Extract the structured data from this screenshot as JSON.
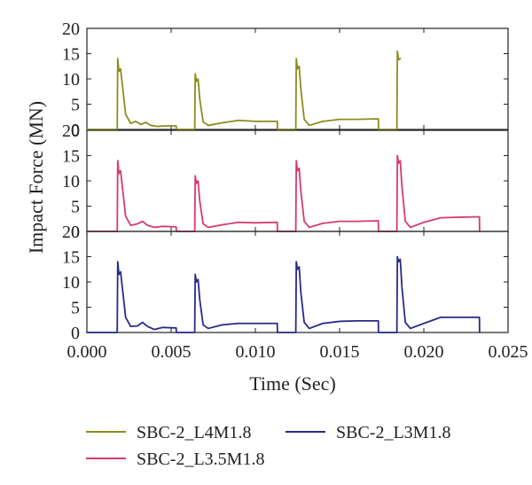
{
  "chart_data": {
    "type": "line",
    "xlabel": "Time (Sec)",
    "ylabel": "Impact Force (MN)",
    "xlim": [
      0.0,
      0.025
    ],
    "ylim": [
      0,
      20
    ],
    "x_ticks": [
      "0.000",
      "0.005",
      "0.010",
      "0.015",
      "0.020",
      "0.025"
    ],
    "y_ticks": [
      "0",
      "5",
      "10",
      "15",
      "20"
    ],
    "x_tick_values": [
      0.0,
      0.005,
      0.01,
      0.015,
      0.02,
      0.025
    ],
    "y_tick_values": [
      0,
      5,
      10,
      15,
      20
    ],
    "legend_position": "bottom",
    "panels": [
      {
        "series": {
          "name": "SBC-2_L4M1.8",
          "color": "#8c8c1e",
          "points": [
            [
              0.0,
              0.0
            ],
            [
              0.0018,
              0.0
            ],
            [
              0.00183,
              14.0
            ],
            [
              0.0019,
              11.5
            ],
            [
              0.002,
              12.0
            ],
            [
              0.0021,
              9.0
            ],
            [
              0.0023,
              3.0
            ],
            [
              0.0026,
              1.2
            ],
            [
              0.0029,
              1.6
            ],
            [
              0.0032,
              1.0
            ],
            [
              0.0035,
              1.4
            ],
            [
              0.0038,
              0.8
            ],
            [
              0.0042,
              0.6
            ],
            [
              0.0047,
              0.7
            ],
            [
              0.0053,
              0.7
            ],
            [
              0.00531,
              0.0
            ],
            [
              0.0064,
              0.0
            ],
            [
              0.00643,
              11.0
            ],
            [
              0.0065,
              9.5
            ],
            [
              0.0066,
              10.0
            ],
            [
              0.0067,
              6.0
            ],
            [
              0.0069,
              1.5
            ],
            [
              0.0072,
              0.8
            ],
            [
              0.008,
              1.3
            ],
            [
              0.009,
              1.8
            ],
            [
              0.01,
              1.6
            ],
            [
              0.0113,
              1.6
            ],
            [
              0.01131,
              0.0
            ],
            [
              0.0124,
              0.0
            ],
            [
              0.01243,
              14.0
            ],
            [
              0.0125,
              12.0
            ],
            [
              0.0126,
              12.5
            ],
            [
              0.0127,
              8.0
            ],
            [
              0.0129,
              2.0
            ],
            [
              0.0132,
              0.8
            ],
            [
              0.014,
              1.6
            ],
            [
              0.015,
              2.0
            ],
            [
              0.016,
              2.0
            ],
            [
              0.0173,
              2.1
            ],
            [
              0.01731,
              0.0
            ],
            [
              0.0184,
              0.0
            ],
            [
              0.01843,
              15.5
            ],
            [
              0.0185,
              13.8
            ],
            [
              0.0186,
              14.0
            ]
          ]
        }
      },
      {
        "series": {
          "name": "SBC-2_L3.5M1.8",
          "color": "#d63a6e",
          "points": [
            [
              0.0,
              0.0
            ],
            [
              0.0018,
              0.0
            ],
            [
              0.00183,
              14.0
            ],
            [
              0.0019,
              11.5
            ],
            [
              0.002,
              12.0
            ],
            [
              0.0021,
              9.0
            ],
            [
              0.0023,
              3.0
            ],
            [
              0.0026,
              1.2
            ],
            [
              0.003,
              1.5
            ],
            [
              0.0033,
              2.0
            ],
            [
              0.0036,
              1.2
            ],
            [
              0.004,
              0.8
            ],
            [
              0.0045,
              1.0
            ],
            [
              0.0053,
              0.9
            ],
            [
              0.00531,
              0.0
            ],
            [
              0.0064,
              0.0
            ],
            [
              0.00643,
              11.0
            ],
            [
              0.0065,
              9.5
            ],
            [
              0.0066,
              10.0
            ],
            [
              0.0067,
              6.0
            ],
            [
              0.0069,
              1.5
            ],
            [
              0.0072,
              0.8
            ],
            [
              0.008,
              1.3
            ],
            [
              0.009,
              1.8
            ],
            [
              0.01,
              1.7
            ],
            [
              0.0113,
              1.8
            ],
            [
              0.01131,
              0.0
            ],
            [
              0.0124,
              0.0
            ],
            [
              0.01243,
              14.0
            ],
            [
              0.0125,
              12.0
            ],
            [
              0.0126,
              12.5
            ],
            [
              0.0127,
              8.0
            ],
            [
              0.0129,
              2.0
            ],
            [
              0.0132,
              0.8
            ],
            [
              0.014,
              1.6
            ],
            [
              0.015,
              2.0
            ],
            [
              0.016,
              2.0
            ],
            [
              0.0173,
              2.1
            ],
            [
              0.01731,
              0.0
            ],
            [
              0.0184,
              0.0
            ],
            [
              0.01843,
              15.0
            ],
            [
              0.0185,
              13.5
            ],
            [
              0.0186,
              14.0
            ],
            [
              0.0187,
              9.0
            ],
            [
              0.0189,
              2.0
            ],
            [
              0.0192,
              0.8
            ],
            [
              0.02,
              1.8
            ],
            [
              0.021,
              2.7
            ],
            [
              0.022,
              2.8
            ],
            [
              0.0233,
              2.9
            ],
            [
              0.02331,
              0.0
            ]
          ]
        }
      },
      {
        "series": {
          "name": "SBC-2_L3M1.8",
          "color": "#2a2a8a",
          "points": [
            [
              0.0,
              0.0
            ],
            [
              0.0018,
              0.0
            ],
            [
              0.00183,
              14.0
            ],
            [
              0.0019,
              11.5
            ],
            [
              0.002,
              12.0
            ],
            [
              0.0021,
              9.0
            ],
            [
              0.0023,
              3.0
            ],
            [
              0.0026,
              1.2
            ],
            [
              0.003,
              1.3
            ],
            [
              0.0033,
              2.0
            ],
            [
              0.0036,
              1.2
            ],
            [
              0.004,
              0.6
            ],
            [
              0.0045,
              1.0
            ],
            [
              0.0053,
              0.9
            ],
            [
              0.00531,
              0.0
            ],
            [
              0.0064,
              0.0
            ],
            [
              0.00643,
              11.5
            ],
            [
              0.0065,
              10.0
            ],
            [
              0.0066,
              10.5
            ],
            [
              0.0067,
              6.5
            ],
            [
              0.0069,
              1.5
            ],
            [
              0.0072,
              0.8
            ],
            [
              0.008,
              1.5
            ],
            [
              0.009,
              1.8
            ],
            [
              0.01,
              1.8
            ],
            [
              0.0113,
              1.8
            ],
            [
              0.01131,
              0.0
            ],
            [
              0.0124,
              0.0
            ],
            [
              0.01243,
              14.0
            ],
            [
              0.0125,
              12.5
            ],
            [
              0.0126,
              13.0
            ],
            [
              0.0127,
              8.0
            ],
            [
              0.0129,
              2.0
            ],
            [
              0.0132,
              0.8
            ],
            [
              0.014,
              1.8
            ],
            [
              0.015,
              2.2
            ],
            [
              0.016,
              2.3
            ],
            [
              0.0173,
              2.3
            ],
            [
              0.01731,
              0.0
            ],
            [
              0.0184,
              0.0
            ],
            [
              0.01843,
              15.0
            ],
            [
              0.0185,
              14.0
            ],
            [
              0.0186,
              14.5
            ],
            [
              0.0187,
              9.0
            ],
            [
              0.0189,
              2.0
            ],
            [
              0.0192,
              0.8
            ],
            [
              0.02,
              1.8
            ],
            [
              0.021,
              3.0
            ],
            [
              0.022,
              3.0
            ],
            [
              0.0233,
              3.0
            ],
            [
              0.02331,
              0.0
            ]
          ]
        }
      }
    ],
    "legend": [
      {
        "name": "SBC-2_L4M1.8",
        "color": "#8c8c1e"
      },
      {
        "name": "SBC-2_L3M1.8",
        "color": "#2a2a8a"
      },
      {
        "name": "SBC-2_L3.5M1.8",
        "color": "#d63a6e"
      }
    ]
  }
}
